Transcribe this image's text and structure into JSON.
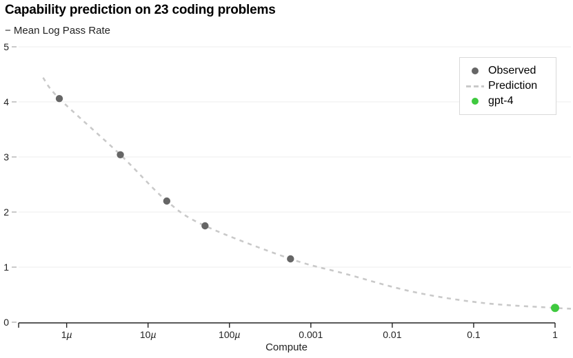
{
  "chart_data": {
    "type": "scatter",
    "title": "Capability prediction on 23 coding problems",
    "ylabel": "− Mean Log Pass Rate",
    "xlabel": "Compute",
    "x_scale": "log",
    "grid": "horizontal",
    "ylim": [
      0,
      5
    ],
    "xlim_log10": [
      -6.59,
      0.195
    ],
    "y_ticks": [
      0,
      1,
      2,
      3,
      4,
      5
    ],
    "x_ticks": [
      {
        "label": "1µ",
        "log10": -6
      },
      {
        "label": "10µ",
        "log10": -5
      },
      {
        "label": "100µ",
        "log10": -4
      },
      {
        "label": "0.001",
        "log10": -3
      },
      {
        "label": "0.01",
        "log10": -2
      },
      {
        "label": "0.1",
        "log10": -1
      },
      {
        "label": "1",
        "log10": 0
      }
    ],
    "series": [
      {
        "name": "Observed",
        "type": "scatter",
        "color": "#666666",
        "points": [
          {
            "compute": 8.1e-07,
            "log10_compute": -6.09,
            "neg_mean_log_pass_rate": 4.06
          },
          {
            "compute": 4.6e-06,
            "log10_compute": -5.34,
            "neg_mean_log_pass_rate": 3.04
          },
          {
            "compute": 1.7e-05,
            "log10_compute": -4.77,
            "neg_mean_log_pass_rate": 2.2
          },
          {
            "compute": 5e-05,
            "log10_compute": -4.3,
            "neg_mean_log_pass_rate": 1.75
          },
          {
            "compute": 0.00057,
            "log10_compute": -3.25,
            "neg_mean_log_pass_rate": 1.15
          }
        ]
      },
      {
        "name": "Prediction",
        "type": "line",
        "style": "dashed",
        "color": "#c9c9c9",
        "curve_log10_value": [
          [
            -6.29,
            4.44
          ],
          [
            -6.09,
            4.06
          ],
          [
            -5.34,
            3.04
          ],
          [
            -4.77,
            2.2
          ],
          [
            -4.3,
            1.75
          ],
          [
            -3.25,
            1.15
          ],
          [
            -2.58,
            0.88
          ],
          [
            -1.74,
            0.55
          ],
          [
            -0.89,
            0.35
          ],
          [
            0.0,
            0.26
          ],
          [
            0.195,
            0.245
          ]
        ]
      },
      {
        "name": "gpt-4",
        "type": "scatter",
        "color": "#3fc93f",
        "points": [
          {
            "compute": 1.0,
            "log10_compute": 0,
            "neg_mean_log_pass_rate": 0.26
          }
        ]
      }
    ],
    "legend": {
      "position": "top-right",
      "entries": [
        {
          "label": "Observed",
          "marker": "dot",
          "color": "#666666"
        },
        {
          "label": "Prediction",
          "marker": "dashed-line",
          "color": "#c9c9c9"
        },
        {
          "label": "gpt-4",
          "marker": "dot",
          "color": "#3fc93f"
        }
      ]
    },
    "colors": {
      "axis_line": "#222222",
      "tick_label": "#222222",
      "gridline": "#ececec",
      "y_tick_dash": "#b3b3b3",
      "legend_border": "#d9d9d9"
    }
  }
}
